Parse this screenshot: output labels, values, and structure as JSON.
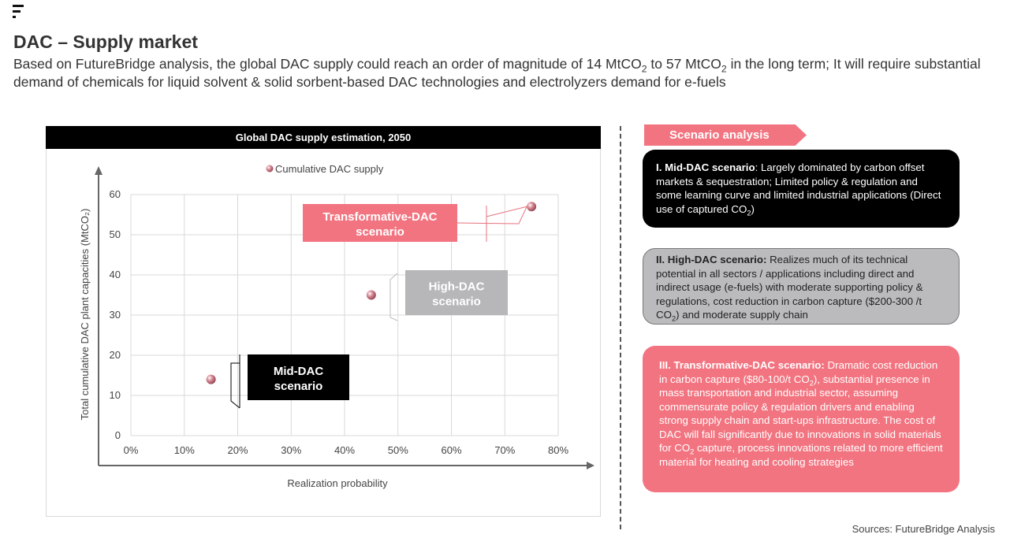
{
  "header": {
    "title": "DAC – Supply market",
    "subtitle_parts": [
      {
        "t": "Based on FutureBridge analysis, the global DAC supply could reach an order of magnitude of 14 MtCO"
      },
      {
        "t": "2",
        "sub": true
      },
      {
        "t": " to 57 MtCO"
      },
      {
        "t": "2",
        "sub": true
      },
      {
        "t": " in the long term; It will require substantial demand of chemicals for liquid solvent & solid sorbent-based DAC technologies and electrolyzers demand for e-fuels"
      }
    ]
  },
  "chart_panel_title": "Global DAC supply estimation, 2050",
  "chart_data": {
    "type": "scatter",
    "title": "Global DAC supply estimation, 2050",
    "legend": "Cumulative DAC supply",
    "legend_position": "top-center",
    "xlabel": "Realization probability",
    "ylabel": "Total cumulative DAC plant capacities (MtCO₂)",
    "xlim": [
      0,
      0.8
    ],
    "ylim": [
      0,
      60
    ],
    "x_ticks": [
      "0%",
      "10%",
      "20%",
      "30%",
      "40%",
      "50%",
      "60%",
      "70%",
      "80%"
    ],
    "y_ticks": [
      "0",
      "10",
      "20",
      "30",
      "40",
      "50",
      "60"
    ],
    "grid": true,
    "marker_color": "#d98c98",
    "points": [
      {
        "x": 0.15,
        "y": 14,
        "label": "Mid-DAC scenario"
      },
      {
        "x": 0.45,
        "y": 35,
        "label": "High-DAC scenario"
      },
      {
        "x": 0.75,
        "y": 57,
        "label": "Transformative-DAC scenario"
      }
    ],
    "label_boxes": [
      {
        "name": "transformative",
        "lines": [
          "Transformative-DAC",
          "scenario"
        ],
        "bg": "#f27480",
        "fg": "#ffffff"
      },
      {
        "name": "high",
        "lines": [
          "High-DAC",
          "scenario"
        ],
        "bg": "#b7b7ba",
        "fg": "#ffffff"
      },
      {
        "name": "mid",
        "lines": [
          "Mid-DAC",
          "scenario"
        ],
        "bg": "#000000",
        "fg": "#ffffff"
      }
    ]
  },
  "scenario_analysis": {
    "header": "Scenario analysis",
    "cards": [
      {
        "name": "mid",
        "parts": [
          {
            "t": "I. Mid-DAC scenario",
            "b": true
          },
          {
            "t": ": Largely dominated by carbon offset markets & sequestration; Limited policy & regulation and some learning curve and limited industrial applications (Direct use of captured CO"
          },
          {
            "t": "2",
            "sub": true
          },
          {
            "t": ")"
          }
        ]
      },
      {
        "name": "high",
        "parts": [
          {
            "t": "II. High-DAC scenario:",
            "b": true
          },
          {
            "t": " Realizes much of its technical potential in all sectors / applications including direct and indirect usage (e-fuels) with moderate supporting policy & regulations, cost reduction in carbon capture ($200-300 /t CO"
          },
          {
            "t": "2",
            "sub": true
          },
          {
            "t": ") and moderate supply chain"
          }
        ]
      },
      {
        "name": "transformative",
        "parts": [
          {
            "t": "III. Transformative-DAC scenario:",
            "b": true
          },
          {
            "t": " Dramatic cost reduction in carbon capture ($80-100/t CO"
          },
          {
            "t": "2",
            "sub": true
          },
          {
            "t": "), substantial presence in mass transportation and industrial sector, assuming commensurate policy & regulation drivers and enabling strong supply chain and start-ups infrastructure. The cost of DAC will fall significantly due to innovations in solid materials for CO"
          },
          {
            "t": "2",
            "sub": true
          },
          {
            "t": " capture, process innovations related to more efficient material for heating and cooling strategies"
          }
        ]
      }
    ]
  },
  "sources": "Sources: FutureBridge Analysis",
  "colors": {
    "accent_pink": "#f27480",
    "grey": "#bbbbbe",
    "black": "#000000"
  }
}
